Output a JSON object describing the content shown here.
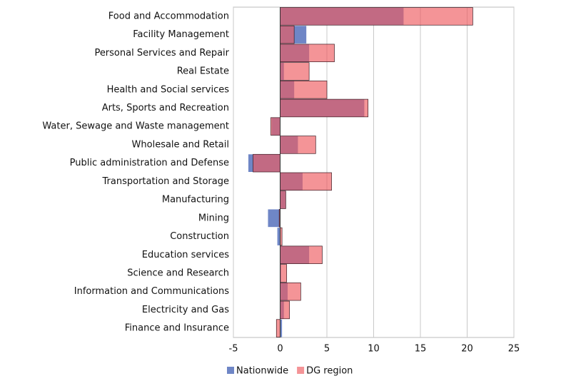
{
  "chart_data": {
    "type": "hbar-overlap",
    "categories": [
      "Food and Accommodation",
      "Facility Management",
      "Personal Services and Repair",
      "Real Estate",
      "Health and Social services",
      "Arts, Sports and Recreation",
      "Water, Sewage and Waste management",
      "Wholesale and Retail",
      "Public administration and Defense",
      "Transportation and Storage",
      "Manufacturing",
      "Mining",
      "Construction",
      "Education services",
      "Science and Research",
      "Information and Communications",
      "Electricity and Gas",
      "Finance and Insurance"
    ],
    "series": [
      {
        "name": "Nationwide",
        "color": "#6f86c6",
        "values": [
          13.2,
          2.8,
          3.1,
          0.4,
          1.5,
          9.0,
          -0.9,
          1.9,
          -3.4,
          2.4,
          0.6,
          -1.3,
          -0.3,
          3.1,
          0.1,
          0.8,
          0.4,
          0.2
        ]
      },
      {
        "name": "DG region",
        "color": "#ee5a60",
        "values": [
          20.6,
          1.5,
          5.8,
          3.1,
          5.0,
          9.4,
          -1.0,
          3.8,
          -2.9,
          5.5,
          0.6,
          -0.1,
          0.2,
          4.5,
          0.7,
          2.2,
          1.0,
          -0.4
        ]
      }
    ],
    "xlim": [
      -5,
      25
    ],
    "xticks": [
      -5,
      0,
      5,
      10,
      15,
      20,
      25
    ],
    "grid": true,
    "legend": "bottom"
  }
}
